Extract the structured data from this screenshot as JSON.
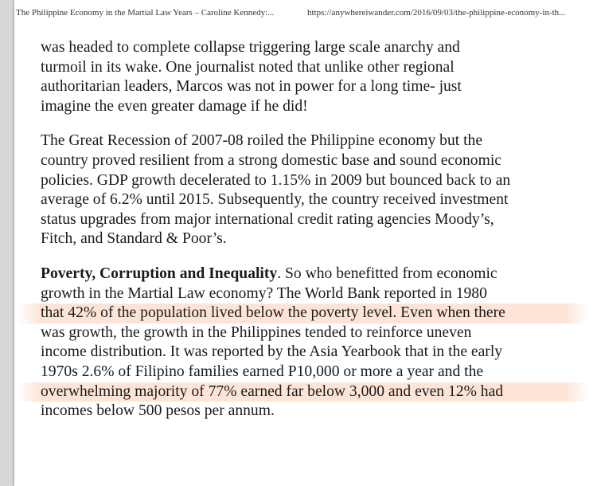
{
  "header": {
    "doc_title": "The Philippine Economy in the Martial Law Years – Caroline Kennedy:...",
    "url": "https://anywhereiwander.com/2016/09/03/the-philippine-economy-in-th..."
  },
  "paragraph1": {
    "lines": [
      "was headed to complete collapse triggering large scale anarchy and",
      "turmoil in its wake. One journalist noted that unlike other regional",
      "authoritarian leaders, Marcos was not in power for a long time- just",
      "imagine the even greater damage if he did!"
    ]
  },
  "paragraph2": {
    "lines": [
      "The Great Recession of 2007-08 roiled the Philippine economy but the",
      "country proved resilient from a strong domestic base and sound economic",
      "policies. GDP growth decelerated to 1.15% in 2009 but bounced back to an",
      "average of 6.2% until 2015. Subsequently, the country received investment",
      "status upgrades from major international credit rating agencies Moody’s,",
      "Fitch, and Standard & Poor’s."
    ]
  },
  "paragraph3": {
    "heading": "Poverty, Corruption and Inequality",
    "line1_rest": ". So who benefitted from economic",
    "lines": [
      "growth in the Martial Law economy? The World Bank reported in 1980",
      "that 42% of the population lived below the poverty level. Even when there",
      "was growth, the growth in the Philippines tended to reinforce uneven",
      "income distribution. It was reported by the Asia Yearbook that in the early",
      "1970s 2.6% of Filipino families earned P10,000 or more a year and the",
      "overwhelming majority of 77% earned far below 3,000 and even 12% had",
      "incomes below 500 pesos per annum."
    ]
  }
}
